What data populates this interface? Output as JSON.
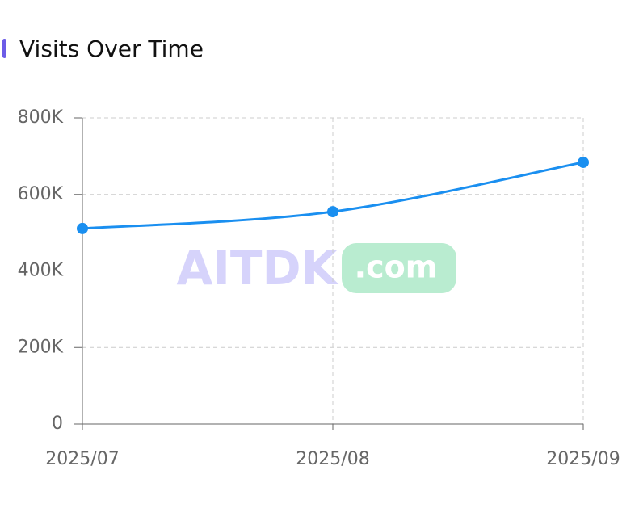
{
  "chart_data": {
    "type": "line",
    "title": "Visits Over Time",
    "categories": [
      "2025/07",
      "2025/08",
      "2025/09"
    ],
    "series": [
      {
        "name": "Visits",
        "color": "#1a8ff0",
        "values": [
          511000,
          555000,
          684000
        ]
      }
    ],
    "ylim": [
      0,
      800000
    ],
    "yticks": [
      0,
      {
        "value": 200000,
        "label": "200K"
      },
      {
        "value": 400000,
        "label": "400K"
      },
      {
        "value": 600000,
        "label": "600K"
      },
      {
        "value": 800000,
        "label": "800K"
      }
    ],
    "grid": true,
    "smooth": true,
    "watermark": {
      "text": "AITDK",
      "suffix": ".com"
    }
  }
}
